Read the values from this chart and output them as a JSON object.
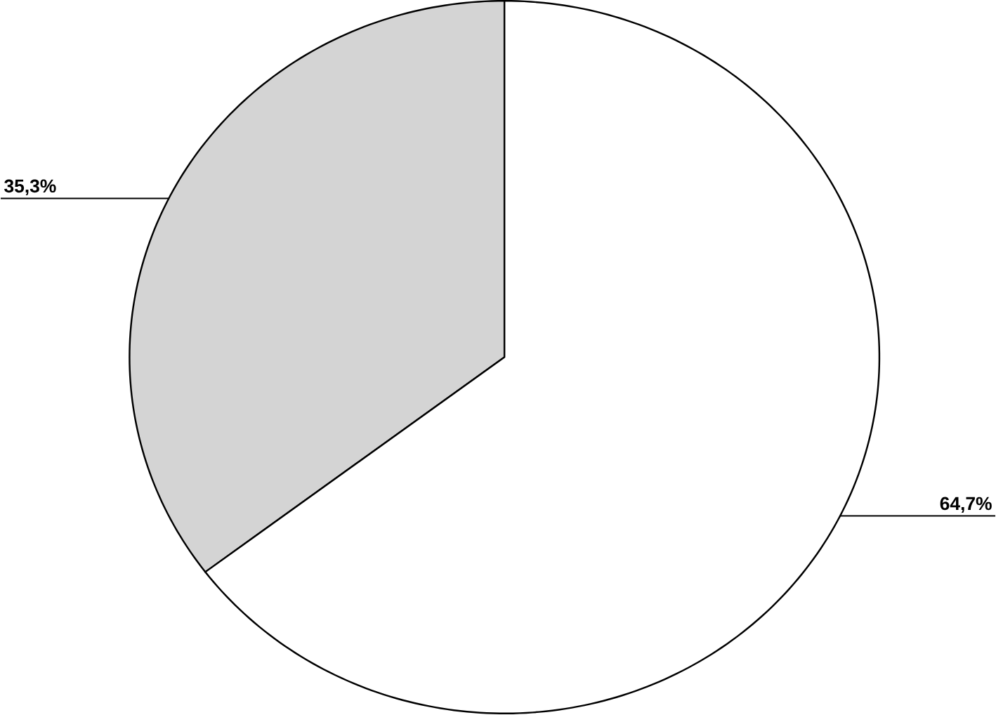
{
  "chart_data": {
    "type": "pie",
    "categories": [
      null,
      null
    ],
    "values": [
      35.3,
      64.7
    ],
    "colors": [
      "#d4d4d4",
      "#ffffff"
    ],
    "value_labels": [
      "35,3%",
      "64,7%"
    ]
  }
}
